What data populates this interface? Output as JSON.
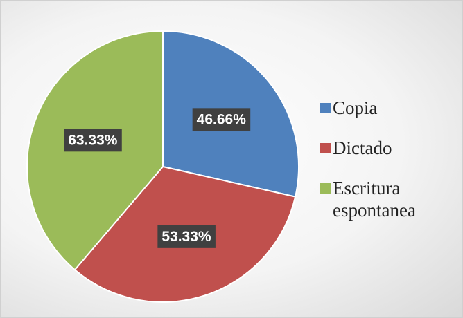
{
  "chart_data": {
    "type": "pie",
    "categories": [
      "Copia",
      "Dictado",
      "Escritura espontanea"
    ],
    "values": [
      46.66,
      53.33,
      63.33
    ],
    "value_labels": [
      "46.66%",
      "53.33%",
      "63.33%"
    ],
    "colors": [
      "#4f81bd",
      "#c0504d",
      "#9bbb59"
    ],
    "legend": "right"
  }
}
